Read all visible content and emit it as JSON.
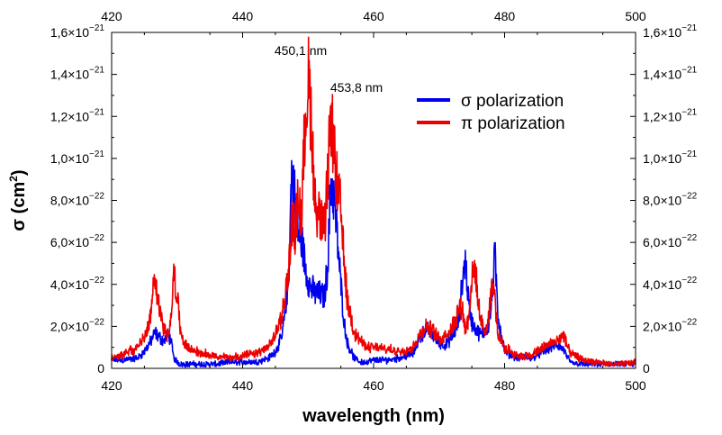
{
  "chart_data": {
    "type": "line",
    "title": "",
    "xlabel": "wavelength (nm)",
    "ylabel_main": "σ (cm",
    "ylabel_sup": "2",
    "ylabel_close": ")",
    "xlim": [
      420,
      500
    ],
    "ylim": [
      0,
      1.6e-21
    ],
    "x_ticks": [
      420,
      440,
      460,
      480,
      500
    ],
    "y_ticks": [
      {
        "value": 0,
        "mantissa": "0",
        "exponent": ""
      },
      {
        "value": 2e-22,
        "mantissa": "2,0×10",
        "exponent": "−22"
      },
      {
        "value": 4e-22,
        "mantissa": "4,0×10",
        "exponent": "−22"
      },
      {
        "value": 6e-22,
        "mantissa": "6,0×10",
        "exponent": "−22"
      },
      {
        "value": 8e-22,
        "mantissa": "8,0×10",
        "exponent": "−22"
      },
      {
        "value": 1e-21,
        "mantissa": "1,0×10",
        "exponent": "−21"
      },
      {
        "value": 1.2e-21,
        "mantissa": "1,2×10",
        "exponent": "−21"
      },
      {
        "value": 1.4e-21,
        "mantissa": "1,4×10",
        "exponent": "−21"
      },
      {
        "value": 1.6e-21,
        "mantissa": "1,6×10",
        "exponent": "−21"
      }
    ],
    "legend_position": "top-right",
    "annotations": [
      {
        "text": "450,1 nm",
        "x": 450.1
      },
      {
        "text": "453,8 nm",
        "x": 453.8
      }
    ],
    "series": [
      {
        "name": "σ polarization",
        "color": "#0000ee",
        "x": [
          420,
          422,
          424,
          425,
          426,
          426.6,
          427.2,
          428,
          428.5,
          429,
          429.5,
          430,
          430.5,
          431,
          432,
          434,
          436,
          438,
          440,
          442,
          444,
          445,
          446,
          447,
          447.5,
          448,
          448.5,
          449,
          449.5,
          450,
          450.5,
          451,
          452,
          452.5,
          453,
          453.5,
          454,
          454.5,
          455,
          455.5,
          456,
          457,
          458,
          459,
          460,
          462,
          464,
          466,
          467,
          468,
          469,
          470,
          471,
          472,
          473,
          473.5,
          474,
          474.5,
          475,
          475.5,
          476,
          476.5,
          477,
          477.5,
          478,
          478.5,
          479,
          480,
          482,
          484,
          486,
          487,
          488,
          489,
          490,
          492,
          494,
          496,
          498,
          500
        ],
        "values": [
          4e-23,
          4e-23,
          5e-23,
          8e-23,
          1.3e-22,
          1.7e-22,
          1.5e-22,
          1.3e-22,
          1.6e-22,
          1.4e-22,
          5e-23,
          3e-23,
          2e-23,
          2e-23,
          2e-23,
          2e-23,
          2e-23,
          3e-23,
          3e-23,
          3e-23,
          5e-23,
          8e-23,
          1.5e-22,
          4e-22,
          9.5e-22,
          8e-22,
          6.5e-22,
          6.2e-22,
          5e-22,
          4.2e-22,
          3.8e-22,
          3.6e-22,
          3.5e-22,
          3.4e-22,
          5e-22,
          9e-22,
          8e-22,
          6e-22,
          4e-22,
          2.2e-22,
          1.2e-22,
          5e-23,
          3e-23,
          3e-23,
          4e-23,
          4e-23,
          5e-23,
          7e-23,
          1.4e-22,
          1.9e-22,
          1.6e-22,
          1.2e-22,
          1.1e-22,
          1.5e-22,
          2.2e-22,
          4e-22,
          5.2e-22,
          3.2e-22,
          2.2e-22,
          1.9e-22,
          1.7e-22,
          1.6e-22,
          1.8e-22,
          2e-22,
          3e-22,
          5.5e-22,
          2.5e-22,
          8e-23,
          5e-23,
          5e-23,
          8e-23,
          1e-22,
          1.1e-22,
          9e-23,
          3e-23,
          2e-23,
          2e-23,
          2e-23,
          2e-23,
          2e-23
        ]
      },
      {
        "name": "π polarization",
        "color": "#ee0000",
        "x": [
          420,
          422,
          424,
          425,
          426,
          426.6,
          427.2,
          428,
          428.5,
          429,
          429.5,
          430,
          430.5,
          431,
          432,
          434,
          436,
          438,
          440,
          442,
          444,
          445,
          446,
          447,
          447.5,
          448,
          448.5,
          449,
          449.5,
          450,
          450.5,
          451,
          452,
          452.5,
          453,
          453.5,
          454,
          454.5,
          455,
          455.5,
          456,
          457,
          458,
          459,
          460,
          462,
          464,
          466,
          467,
          468,
          469,
          470,
          471,
          472,
          473,
          473.5,
          474,
          474.5,
          475,
          475.5,
          476,
          476.5,
          477,
          477.5,
          478,
          478.5,
          479,
          480,
          482,
          484,
          486,
          487,
          488,
          489,
          490,
          492,
          494,
          496,
          498,
          500
        ],
        "values": [
          5e-23,
          7e-23,
          1e-22,
          1.5e-22,
          2.5e-22,
          4.7e-22,
          3e-22,
          1.8e-22,
          1.6e-22,
          2.2e-22,
          4.5e-22,
          3.5e-22,
          1.8e-22,
          1.2e-22,
          9e-23,
          7e-23,
          6e-23,
          5e-23,
          6e-23,
          7e-23,
          1e-22,
          1.6e-22,
          2.5e-22,
          4.5e-22,
          7e-22,
          6.5e-22,
          8.2e-22,
          7e-22,
          1.15e-21,
          1.38e-21,
          1.2e-21,
          8e-22,
          7e-22,
          6.5e-22,
          9e-22,
          1.22e-21,
          1e-21,
          8.5e-22,
          7.5e-22,
          5e-22,
          3.2e-22,
          1.8e-22,
          1.3e-22,
          1e-22,
          1e-22,
          9e-23,
          8e-23,
          1e-22,
          1.6e-22,
          2e-22,
          1.8e-22,
          1.4e-22,
          1.6e-22,
          2e-22,
          2.8e-22,
          3e-22,
          1.8e-22,
          2.5e-22,
          4.3e-22,
          4.8e-22,
          3e-22,
          2.1e-22,
          1.8e-22,
          2.2e-22,
          4e-22,
          3.5e-22,
          1.5e-22,
          1e-22,
          6e-23,
          6e-23,
          1e-22,
          1.2e-22,
          1.3e-22,
          1.6e-22,
          7e-23,
          4e-23,
          3e-23,
          2e-23,
          2e-23,
          3e-23
        ]
      }
    ]
  }
}
